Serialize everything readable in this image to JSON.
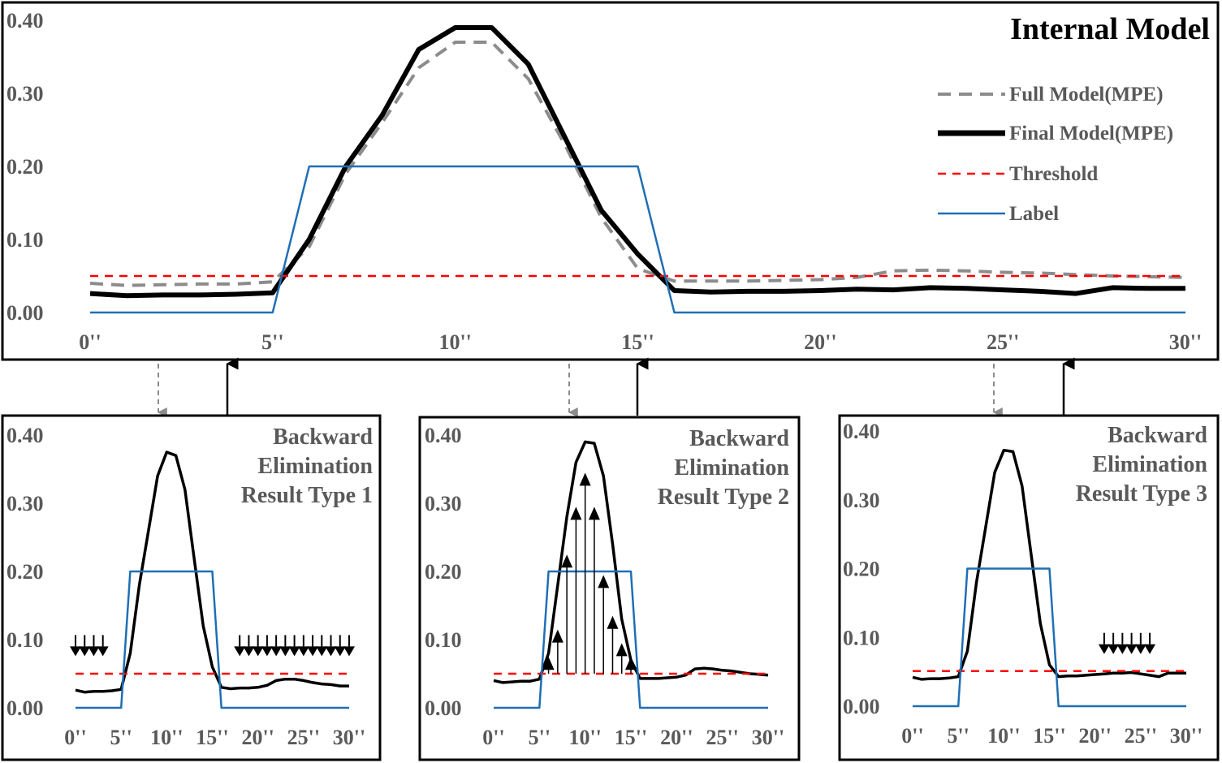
{
  "colors": {
    "full": "#8c8c8c",
    "final": "#000000",
    "threshold": "#ff0000",
    "label": "#1f6fb5"
  },
  "x_ticks": [
    "0''",
    "5''",
    "10''",
    "15''",
    "20''",
    "25''",
    "30''"
  ],
  "y_ticks": [
    "0.00",
    "0.10",
    "0.20",
    "0.30",
    "0.40"
  ],
  "chart_data": [
    {
      "id": "main",
      "type": "line",
      "title": "Internal Model",
      "xlim": [
        0,
        30
      ],
      "ylim": [
        0,
        0.4
      ],
      "legend": {
        "placement": "top-right",
        "entries": [
          "Full Model(MPE)",
          "Final Model(MPE)",
          "Threshold",
          "Label"
        ]
      },
      "series": [
        {
          "name": "Full Model(MPE)",
          "style": "dashed-gray",
          "x": [
            0,
            1,
            2,
            3,
            4,
            5,
            6,
            7,
            8,
            9,
            10,
            11,
            12,
            13,
            14,
            15,
            16,
            17,
            18,
            19,
            20,
            21,
            22,
            23,
            24,
            25,
            26,
            27,
            28,
            29,
            30
          ],
          "y": [
            0.04,
            0.037,
            0.038,
            0.039,
            0.039,
            0.042,
            0.09,
            0.19,
            0.26,
            0.335,
            0.37,
            0.37,
            0.32,
            0.23,
            0.13,
            0.06,
            0.043,
            0.043,
            0.043,
            0.044,
            0.045,
            0.048,
            0.057,
            0.058,
            0.057,
            0.055,
            0.054,
            0.052,
            0.05,
            0.049,
            0.048
          ]
        },
        {
          "name": "Final Model(MPE)",
          "style": "solid-black-thick",
          "x": [
            0,
            1,
            2,
            3,
            4,
            5,
            6,
            7,
            8,
            9,
            10,
            11,
            12,
            13,
            14,
            15,
            16,
            17,
            18,
            19,
            20,
            21,
            22,
            23,
            24,
            25,
            26,
            27,
            28,
            29,
            30
          ],
          "y": [
            0.026,
            0.023,
            0.024,
            0.024,
            0.025,
            0.027,
            0.1,
            0.2,
            0.27,
            0.36,
            0.39,
            0.39,
            0.34,
            0.24,
            0.14,
            0.08,
            0.03,
            0.028,
            0.029,
            0.029,
            0.03,
            0.032,
            0.031,
            0.034,
            0.033,
            0.031,
            0.029,
            0.026,
            0.034,
            0.033,
            0.033
          ]
        },
        {
          "name": "Threshold",
          "style": "dashed-red",
          "x": [
            0,
            30
          ],
          "y": [
            0.05,
            0.05
          ]
        },
        {
          "name": "Label",
          "style": "solid-blue",
          "x": [
            0,
            5,
            6,
            15,
            16,
            30
          ],
          "y": [
            0,
            0,
            0.2,
            0.2,
            0,
            0
          ]
        }
      ]
    },
    {
      "id": "type1",
      "type": "line",
      "title": [
        "Backward",
        "Elimination",
        "Result Type 1"
      ],
      "xlim": [
        0,
        30
      ],
      "ylim": [
        0,
        0.4
      ],
      "series": [
        {
          "name": "",
          "style": "solid-black",
          "x": [
            0,
            1,
            2,
            3,
            4,
            5,
            6,
            7,
            8,
            9,
            10,
            11,
            12,
            13,
            14,
            15,
            16,
            17,
            18,
            19,
            20,
            21,
            22,
            23,
            24,
            25,
            26,
            27,
            28,
            29,
            30
          ],
          "y": [
            0.026,
            0.023,
            0.024,
            0.024,
            0.025,
            0.027,
            0.08,
            0.18,
            0.26,
            0.34,
            0.375,
            0.37,
            0.32,
            0.22,
            0.12,
            0.06,
            0.03,
            0.028,
            0.029,
            0.029,
            0.03,
            0.033,
            0.04,
            0.042,
            0.042,
            0.04,
            0.037,
            0.035,
            0.034,
            0.032,
            0.032
          ]
        },
        {
          "name": "",
          "style": "dashed-red",
          "x": [
            0,
            30
          ],
          "y": [
            0.05,
            0.05
          ]
        },
        {
          "name": "",
          "style": "solid-blue",
          "x": [
            0,
            5,
            6,
            15,
            16,
            30
          ],
          "y": [
            0,
            0,
            0.2,
            0.2,
            0,
            0
          ]
        }
      ],
      "annotations": {
        "down_arrows_x": [
          0,
          1,
          2,
          3,
          18,
          19,
          20,
          21,
          22,
          23,
          24,
          25,
          26,
          27,
          28,
          29,
          30
        ],
        "arrow_y": 0.09
      }
    },
    {
      "id": "type2",
      "type": "line",
      "title": [
        "Backward",
        "Elimination",
        "Result Type 2"
      ],
      "xlim": [
        0,
        30
      ],
      "ylim": [
        0,
        0.4
      ],
      "series": [
        {
          "name": "",
          "style": "solid-black",
          "x": [
            0,
            1,
            2,
            3,
            4,
            5,
            6,
            7,
            8,
            9,
            10,
            11,
            12,
            13,
            14,
            15,
            16,
            17,
            18,
            19,
            20,
            21,
            22,
            23,
            24,
            25,
            26,
            27,
            28,
            29,
            30
          ],
          "y": [
            0.04,
            0.037,
            0.038,
            0.039,
            0.039,
            0.042,
            0.08,
            0.18,
            0.28,
            0.36,
            0.39,
            0.388,
            0.34,
            0.24,
            0.13,
            0.07,
            0.043,
            0.043,
            0.043,
            0.044,
            0.045,
            0.048,
            0.057,
            0.058,
            0.057,
            0.055,
            0.054,
            0.052,
            0.05,
            0.049,
            0.048
          ]
        },
        {
          "name": "",
          "style": "dashed-red",
          "x": [
            0,
            30
          ],
          "y": [
            0.05,
            0.05
          ]
        },
        {
          "name": "",
          "style": "solid-blue",
          "x": [
            0,
            5,
            6,
            15,
            16,
            30
          ],
          "y": [
            0,
            0,
            0.2,
            0.2,
            0,
            0
          ]
        }
      ],
      "annotations": {
        "up_arrows": [
          [
            6,
            0.07
          ],
          [
            7,
            0.11
          ],
          [
            8,
            0.22
          ],
          [
            9,
            0.29
          ],
          [
            10,
            0.34
          ],
          [
            11,
            0.29
          ],
          [
            12,
            0.19
          ],
          [
            13,
            0.13
          ],
          [
            14,
            0.09
          ],
          [
            15,
            0.07
          ]
        ]
      }
    },
    {
      "id": "type3",
      "type": "line",
      "title": [
        "Backward",
        "Elimination",
        "Result Type 3"
      ],
      "xlim": [
        0,
        30
      ],
      "ylim": [
        0,
        0.4
      ],
      "series": [
        {
          "name": "",
          "style": "solid-black",
          "x": [
            0,
            1,
            2,
            3,
            4,
            5,
            6,
            7,
            8,
            9,
            10,
            11,
            12,
            13,
            14,
            15,
            16,
            17,
            18,
            19,
            20,
            21,
            22,
            23,
            24,
            25,
            26,
            27,
            28,
            29,
            30
          ],
          "y": [
            0.042,
            0.039,
            0.04,
            0.04,
            0.041,
            0.043,
            0.08,
            0.18,
            0.26,
            0.34,
            0.372,
            0.37,
            0.32,
            0.22,
            0.12,
            0.06,
            0.043,
            0.044,
            0.044,
            0.045,
            0.046,
            0.047,
            0.048,
            0.048,
            0.049,
            0.047,
            0.045,
            0.043,
            0.048,
            0.048,
            0.048
          ]
        },
        {
          "name": "",
          "style": "dashed-red",
          "x": [
            0,
            30
          ],
          "y": [
            0.051,
            0.051
          ]
        },
        {
          "name": "",
          "style": "solid-blue",
          "x": [
            0,
            5,
            6,
            15,
            16,
            30
          ],
          "y": [
            0,
            0,
            0.2,
            0.2,
            0,
            0
          ]
        }
      ],
      "annotations": {
        "down_arrows_x": [
          21,
          22,
          23,
          24,
          25,
          26
        ],
        "arrow_y": 0.09
      }
    }
  ]
}
